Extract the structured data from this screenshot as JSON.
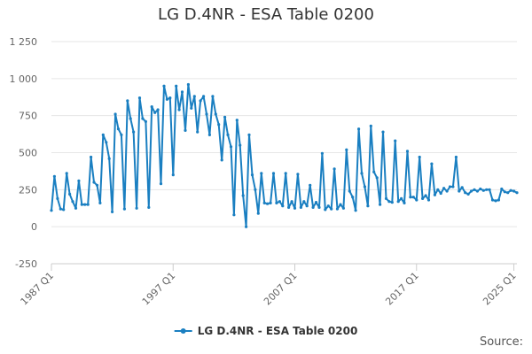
{
  "source_label": "Source:",
  "colors": {
    "series": "#1a7fc1",
    "grid": "#e6e6e6",
    "text": "#666666"
  },
  "chart_data": {
    "type": "line",
    "title": "LG D.4NR - ESA Table 0200",
    "xlabel": "",
    "ylabel": "",
    "y_ticks": [
      -250,
      0,
      250,
      500,
      750,
      1000,
      1250
    ],
    "y_tick_labels": [
      "-250",
      "0",
      "250",
      "500",
      "750",
      "1 000",
      "1 250"
    ],
    "ylim": [
      -250,
      1250
    ],
    "x_ticks": [
      "1987 Q1",
      "1997 Q1",
      "2007 Q1",
      "2017 Q1",
      "2025 Q1"
    ],
    "grid": true,
    "legend_position": "bottom",
    "series": [
      {
        "name": "LG D.4NR - ESA Table 0200",
        "values": [
          110,
          340,
          190,
          120,
          115,
          360,
          220,
          170,
          125,
          310,
          150,
          150,
          150,
          470,
          300,
          280,
          160,
          620,
          570,
          460,
          100,
          760,
          660,
          620,
          120,
          850,
          730,
          640,
          125,
          870,
          730,
          710,
          130,
          810,
          770,
          790,
          290,
          950,
          860,
          870,
          350,
          950,
          790,
          910,
          650,
          960,
          800,
          880,
          640,
          850,
          880,
          760,
          620,
          880,
          760,
          690,
          450,
          740,
          620,
          540,
          80,
          720,
          550,
          210,
          0,
          620,
          350,
          250,
          90,
          360,
          160,
          155,
          160,
          360,
          160,
          170,
          140,
          360,
          130,
          170,
          125,
          355,
          130,
          170,
          140,
          280,
          130,
          165,
          130,
          495,
          115,
          140,
          120,
          390,
          120,
          150,
          125,
          520,
          240,
          200,
          110,
          660,
          360,
          270,
          140,
          680,
          370,
          330,
          150,
          640,
          190,
          170,
          165,
          580,
          170,
          190,
          160,
          510,
          200,
          200,
          180,
          470,
          190,
          210,
          180,
          425,
          215,
          250,
          225,
          260,
          240,
          270,
          270,
          470,
          240,
          265,
          230,
          220,
          240,
          250,
          240,
          255,
          245,
          250,
          250,
          180,
          175,
          180,
          255,
          235,
          230,
          245,
          240,
          230
        ]
      }
    ]
  }
}
